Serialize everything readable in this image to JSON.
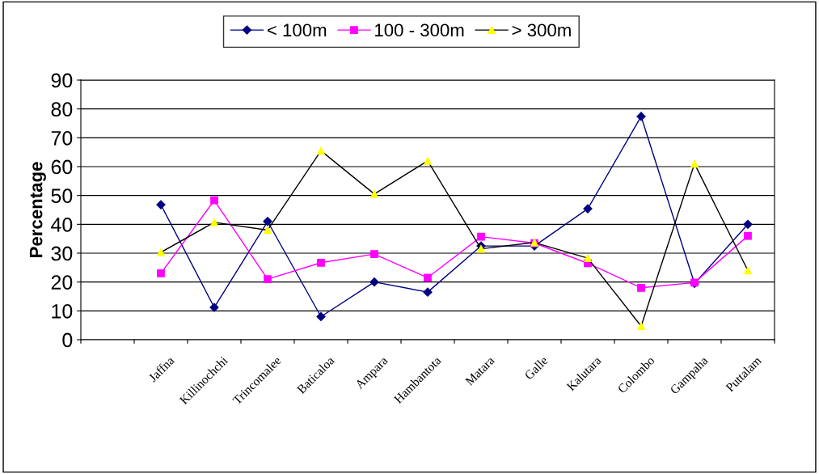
{
  "chart_data": {
    "type": "line",
    "ylabel": "Percentage",
    "categories": [
      null,
      "Jaffna",
      "Killinochchi",
      "Trincomalee",
      "Baticaloa",
      "Ampara",
      "Hambantota",
      "Matara",
      "Galle",
      "Kalutara",
      "Colombo",
      "Gampaha",
      "Puttalam"
    ],
    "series": [
      {
        "name": "< 100m",
        "color": "#000080",
        "marker": "diamond",
        "values": [
          null,
          46.8,
          11.2,
          41,
          8,
          20,
          16.5,
          32.5,
          32.5,
          45.4,
          77.4,
          19.5,
          40
        ]
      },
      {
        "name": "100 - 300m",
        "color": "#ff00ff",
        "marker": "square",
        "values": [
          null,
          23,
          48.3,
          21,
          26.7,
          29.7,
          21.5,
          35.7,
          33.5,
          26.5,
          18,
          19.8,
          36
        ]
      },
      {
        "name": "> 300m",
        "color": "#000000",
        "colors": [
          "#ffff00",
          "#ffff00",
          "#ffff00",
          "#ffff00",
          "#ffff00",
          "#ffff00",
          "#ffff00",
          "#ffff00",
          "#ffff00",
          "#ffff00",
          "#ffff00",
          "#ffff00",
          "#ffff00"
        ],
        "marker": "triangle",
        "values": [
          null,
          30.3,
          40.7,
          38,
          65.5,
          50.5,
          62,
          31.5,
          33.7,
          28.3,
          4.7,
          61,
          24
        ]
      }
    ],
    "ylim": [
      0,
      90
    ],
    "yticks": [
      0,
      10,
      20,
      30,
      40,
      50,
      60,
      70,
      80,
      90
    ],
    "grid": "y",
    "legend": "top"
  }
}
